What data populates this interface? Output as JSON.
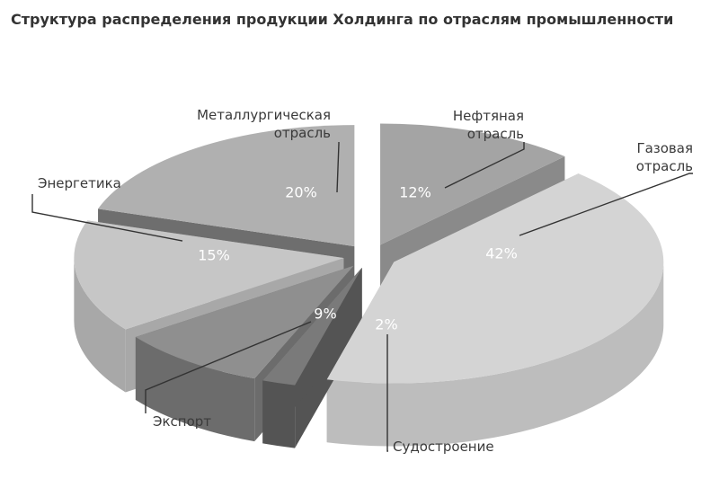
{
  "chart_data": {
    "type": "pie",
    "title": "Структура распределения продукции Холдинга по отраслям промышленности",
    "slices": [
      {
        "label": [
          "Нефтяная",
          "отрасль"
        ],
        "value": 12,
        "value_label": "12%",
        "color": "#a4a4a4",
        "side": "#8a8a8a"
      },
      {
        "label": [
          "Газовая",
          "отрасль"
        ],
        "value": 42,
        "value_label": "42%",
        "color": "#d4d4d4",
        "side": "#bdbdbd"
      },
      {
        "label": [
          "Судостроение"
        ],
        "value": 2,
        "value_label": "2%",
        "color": "#7a7a7a",
        "side": "#545454"
      },
      {
        "label": [
          "Экспорт"
        ],
        "value": 9,
        "value_label": "9%",
        "color": "#8f8f8f",
        "side": "#6c6c6c"
      },
      {
        "label": [
          "Энергетика"
        ],
        "value": 15,
        "value_label": "15%",
        "color": "#c6c6c6",
        "side": "#a8a8a8"
      },
      {
        "label": [
          "Металлургическая",
          "отрасль"
        ],
        "value": 20,
        "value_label": "20%",
        "color": "#b0b0b0",
        "side": "#6e6e6e"
      }
    ]
  }
}
